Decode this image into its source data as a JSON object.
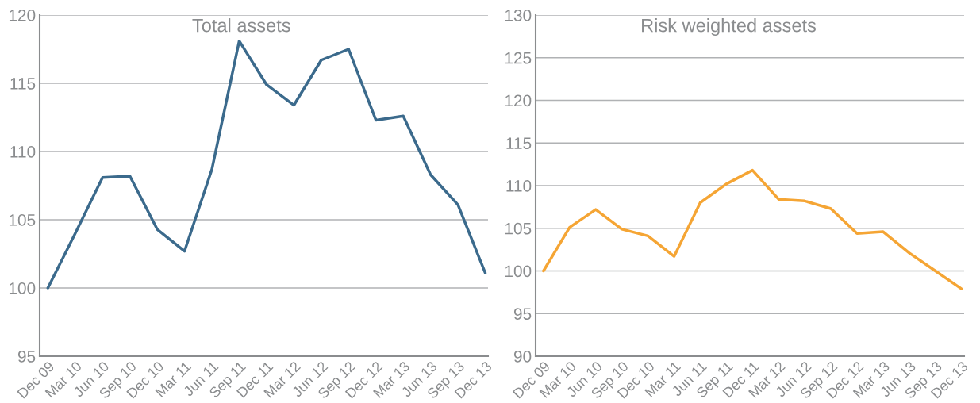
{
  "chart_data": [
    {
      "type": "line",
      "title": "Total assets",
      "categories": [
        "Dec 09",
        "Mar 10",
        "Jun 10",
        "Sep 10",
        "Dec 10",
        "Mar 11",
        "Jun 11",
        "Sep 11",
        "Dec 11",
        "Mar 12",
        "Jun 12",
        "Sep 12",
        "Dec 12",
        "Mar 13",
        "Jun 13",
        "Sep 13",
        "Dec 13"
      ],
      "series": [
        {
          "color": "#3b6a8c",
          "values": [
            100,
            104,
            108.1,
            108.2,
            104.3,
            102.7,
            108.7,
            118.1,
            114.9,
            113.4,
            116.7,
            117.5,
            112.3,
            112.6,
            108.3,
            106.1,
            101.1
          ]
        }
      ],
      "ylim": [
        95,
        120
      ],
      "yticks": [
        95,
        100,
        105,
        110,
        115,
        120
      ],
      "grid": "y",
      "marker": "none",
      "line_style": "solid"
    },
    {
      "type": "line",
      "title": "Risk weighted assets",
      "categories": [
        "Dec 09",
        "Mar 10",
        "Jun 10",
        "Sep 10",
        "Dec 10",
        "Mar 11",
        "Jun 11",
        "Sep 11",
        "Dec 11",
        "Mar 12",
        "Jun 12",
        "Sep 12",
        "Dec 12",
        "Mar 13",
        "Jun 13",
        "Sep 13",
        "Dec 13"
      ],
      "series": [
        {
          "color": "#f5a534",
          "values": [
            100,
            105.1,
            107.2,
            104.9,
            104.1,
            101.7,
            108.0,
            110.2,
            111.8,
            108.4,
            108.2,
            107.3,
            104.4,
            104.6,
            102.1,
            100,
            97.9
          ]
        }
      ],
      "ylim": [
        90,
        130
      ],
      "yticks": [
        90,
        95,
        100,
        105,
        110,
        115,
        120,
        125,
        130
      ],
      "grid": "y",
      "marker": "none",
      "line_style": "solid"
    }
  ]
}
